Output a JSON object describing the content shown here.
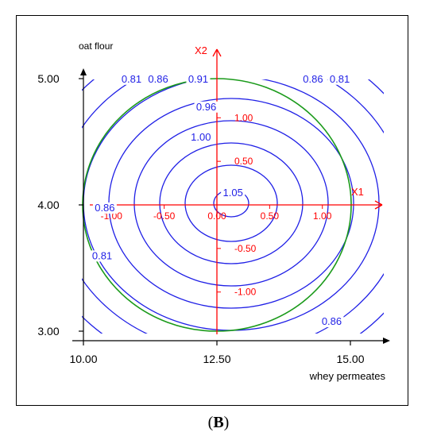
{
  "chart_data": {
    "type": "contour",
    "xlabel": "whey permeates",
    "ylabel": "oat flour",
    "xlim": [
      10.0,
      15.0
    ],
    "ylim": [
      3.0,
      5.0
    ],
    "x_ticks": [
      "10.00",
      "12.50",
      "15.00"
    ],
    "y_ticks": [
      "3.00",
      "4.00",
      "5.00"
    ],
    "coded_axes": {
      "x_name": "X1",
      "y_name": "X2",
      "x_ticks": [
        "-1.00",
        "-0.50",
        "0.00",
        "0.50",
        "1.00"
      ],
      "y_ticks": [
        "-1.00",
        "-0.50",
        "0.50",
        "1.00"
      ]
    },
    "center": [
      12.5,
      4.0
    ],
    "contour_labels": [
      {
        "text": "0.81",
        "x": 10.9,
        "y": 4.97
      },
      {
        "text": "0.86",
        "x": 11.4,
        "y": 4.97
      },
      {
        "text": "0.91",
        "x": 12.15,
        "y": 4.97
      },
      {
        "text": "0.86",
        "x": 14.3,
        "y": 4.97
      },
      {
        "text": "0.81",
        "x": 14.8,
        "y": 4.97
      },
      {
        "text": "0.96",
        "x": 12.3,
        "y": 4.75
      },
      {
        "text": "1.00",
        "x": 12.2,
        "y": 4.51
      },
      {
        "text": "1.05",
        "x": 12.8,
        "y": 4.07
      },
      {
        "text": "0.86",
        "x": 10.4,
        "y": 3.95
      },
      {
        "text": "0.81",
        "x": 10.35,
        "y": 3.57
      },
      {
        "text": "0.86",
        "x": 14.65,
        "y": 3.05
      }
    ],
    "contour_levels": [
      1.05,
      1.0,
      0.96,
      0.91,
      0.86,
      0.81,
      0.76
    ],
    "design_region": "circle"
  },
  "colors": {
    "contour": "#1f1fe6",
    "coded_axes": "#ff0000",
    "design_circle": "#1a9a1a",
    "axes": "#000000"
  },
  "caption": {
    "open": "(",
    "letter": "B",
    "close": ")"
  }
}
